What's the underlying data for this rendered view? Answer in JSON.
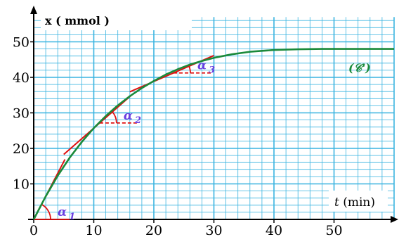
{
  "chart_data": {
    "type": "line",
    "title": "",
    "xlabel_var": "t",
    "xlabel_unit": " (min)",
    "ylabel": "x ( mmol )",
    "xlim": [
      0,
      60
    ],
    "ylim": [
      0,
      55
    ],
    "xticks": [
      0,
      10,
      20,
      30,
      40,
      50
    ],
    "yticks": [
      10,
      20,
      30,
      40,
      50
    ],
    "grid": true,
    "series": [
      {
        "name": "(𝒞')",
        "color": "#1b8a3a",
        "x": [
          0,
          2,
          4,
          6,
          8,
          10,
          12,
          14,
          16,
          18,
          20,
          22,
          24,
          26,
          28,
          30,
          33,
          36,
          40,
          44,
          48,
          52,
          56,
          60
        ],
        "y": [
          0,
          6.5,
          12.3,
          17.4,
          21.8,
          25.7,
          29.1,
          32.1,
          34.7,
          37.0,
          39.0,
          40.8,
          42.3,
          43.6,
          44.6,
          45.5,
          46.5,
          47.2,
          47.7,
          47.9,
          48.0,
          48.0,
          48.0,
          48.0
        ]
      }
    ],
    "tangents": [
      {
        "point": [
          0,
          0
        ],
        "slope": 3.25,
        "x_range": [
          0,
          5.2
        ],
        "label": "α",
        "sub": "1"
      },
      {
        "point": [
          10,
          25.7
        ],
        "slope": 1.48,
        "x_range": [
          5,
          16.5
        ],
        "label": "α",
        "sub": "2"
      },
      {
        "point": [
          25,
          42.5
        ],
        "slope": 0.73,
        "x_range": [
          16,
          30
        ],
        "label": "α",
        "sub": "3"
      }
    ],
    "colors": {
      "grid": "#3ab4e0",
      "axes": "#000000",
      "curve": "#1b8a3a",
      "tangent": "#e01010",
      "angle_label": "#6a3ee0"
    }
  }
}
